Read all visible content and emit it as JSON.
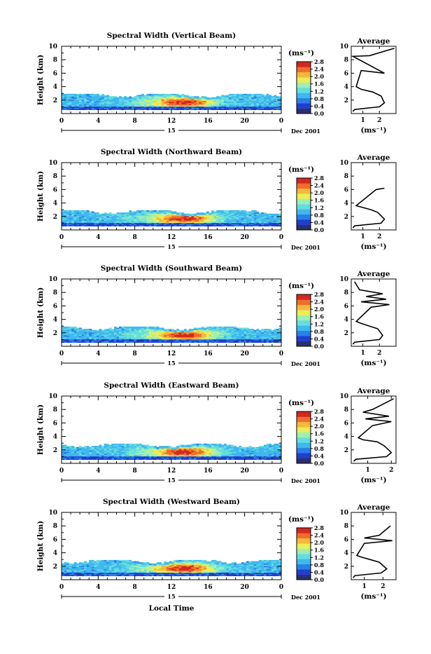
{
  "chart_data": [
    {
      "type": "heatmap",
      "title": "Spectral Width (Vertical Beam)",
      "ylabel": "Height (km)",
      "x_ticks": [
        "0",
        "4",
        "8",
        "12",
        "16",
        "20",
        "0"
      ],
      "y_ticks": [
        "2",
        "4",
        "6",
        "8",
        "10"
      ],
      "xlim": [
        0,
        24
      ],
      "ylim": [
        0,
        10
      ],
      "day_label": "15",
      "date_label": "Dec 2001",
      "colorbar_unit": "(ms⁻¹)",
      "colorbar_ticks": [
        "2.8",
        "2.4",
        "2.0",
        "1.6",
        "1.2",
        "0.8",
        "0.4",
        "0.0"
      ],
      "colorbar_range": [
        0,
        2.8
      ],
      "profile": {
        "title": "Average",
        "xlabel": "(ms⁻¹)",
        "x_ticks": [
          "1",
          "2"
        ],
        "xlim": [
          0.3,
          3.0
        ],
        "y_ticks": [
          "2",
          "4",
          "6",
          "8",
          "10"
        ],
        "ylim": [
          0,
          10
        ],
        "points": [
          [
            0.4,
            0.3
          ],
          [
            0.5,
            0.6
          ],
          [
            2.0,
            1.0
          ],
          [
            2.3,
            1.6
          ],
          [
            2.1,
            2.6
          ],
          [
            1.6,
            3.2
          ],
          [
            0.9,
            3.6
          ],
          [
            0.6,
            4.0
          ],
          [
            0.9,
            6.4
          ],
          [
            2.3,
            6.0
          ],
          [
            0.4,
            8.5
          ],
          [
            1.4,
            8.6
          ],
          [
            2.9,
            9.7
          ]
        ]
      }
    },
    {
      "type": "heatmap",
      "title": "Spectral Width (Northward Beam)",
      "ylabel": "Height (km)",
      "x_ticks": [
        "0",
        "4",
        "8",
        "12",
        "16",
        "20",
        "0"
      ],
      "y_ticks": [
        "2",
        "4",
        "6",
        "8",
        "10"
      ],
      "xlim": [
        0,
        24
      ],
      "ylim": [
        0,
        10
      ],
      "day_label": "15",
      "date_label": "Dec 2001",
      "colorbar_unit": "(ms⁻¹)",
      "colorbar_ticks": [
        "2.8",
        "2.4",
        "2.0",
        "1.6",
        "1.2",
        "0.8",
        "0.4",
        "0.0"
      ],
      "colorbar_range": [
        0,
        2.8
      ],
      "profile": {
        "title": "Average",
        "xlabel": "(ms⁻¹)",
        "x_ticks": [
          "1",
          "2"
        ],
        "xlim": [
          0.3,
          3.0
        ],
        "y_ticks": [
          "2",
          "4",
          "6",
          "8",
          "10"
        ],
        "ylim": [
          0,
          10
        ],
        "points": [
          [
            0.4,
            0.3
          ],
          [
            0.5,
            0.6
          ],
          [
            2.1,
            1.0
          ],
          [
            2.3,
            1.6
          ],
          [
            1.9,
            2.6
          ],
          [
            1.5,
            3.0
          ],
          [
            0.9,
            3.4
          ],
          [
            0.6,
            3.6
          ],
          [
            1.8,
            6.0
          ],
          [
            2.3,
            6.2
          ]
        ]
      }
    },
    {
      "type": "heatmap",
      "title": "Spectral Width (Southward Beam)",
      "ylabel": "Height (km)",
      "x_ticks": [
        "0",
        "4",
        "8",
        "12",
        "16",
        "20",
        "0"
      ],
      "y_ticks": [
        "2",
        "4",
        "6",
        "8",
        "10"
      ],
      "xlim": [
        0,
        24
      ],
      "ylim": [
        0,
        10
      ],
      "day_label": "15",
      "date_label": "Dec 2001",
      "colorbar_unit": "(ms⁻¹)",
      "colorbar_ticks": [
        "2.8",
        "2.4",
        "2.0",
        "1.6",
        "1.2",
        "0.8",
        "0.4",
        "0.0"
      ],
      "colorbar_range": [
        0,
        2.8
      ],
      "profile": {
        "title": "Average",
        "xlabel": "(ms⁻¹)",
        "x_ticks": [
          "1",
          "2"
        ],
        "xlim": [
          0.3,
          3.0
        ],
        "y_ticks": [
          "2",
          "4",
          "6",
          "8",
          "10"
        ],
        "ylim": [
          0,
          10
        ],
        "points": [
          [
            0.4,
            0.3
          ],
          [
            0.5,
            0.6
          ],
          [
            2.0,
            1.0
          ],
          [
            2.2,
            1.6
          ],
          [
            1.9,
            2.6
          ],
          [
            1.4,
            3.0
          ],
          [
            0.9,
            3.4
          ],
          [
            0.6,
            3.7
          ],
          [
            1.5,
            5.8
          ],
          [
            2.6,
            6.2
          ],
          [
            0.9,
            6.6
          ],
          [
            2.4,
            7.0
          ],
          [
            1.2,
            7.4
          ],
          [
            2.2,
            7.8
          ],
          [
            0.8,
            8.4
          ],
          [
            0.5,
            9.6
          ]
        ]
      }
    },
    {
      "type": "heatmap",
      "title": "Spectral Width (Eastward Beam)",
      "ylabel": "Height (km)",
      "x_ticks": [
        "0",
        "4",
        "8",
        "12",
        "16",
        "20",
        "0"
      ],
      "y_ticks": [
        "2",
        "4",
        "6",
        "8",
        "10"
      ],
      "xlim": [
        0,
        24
      ],
      "ylim": [
        0,
        10
      ],
      "day_label": "15",
      "date_label": "Dec 2001",
      "colorbar_unit": "(ms⁻¹)",
      "colorbar_ticks": [
        "2.8",
        "2.4",
        "2.0",
        "1.6",
        "1.2",
        "0.8",
        "0.4",
        "0.0"
      ],
      "colorbar_range": [
        0,
        2.8
      ],
      "profile": {
        "title": "Average",
        "xlabel": "(ms⁻¹)",
        "x_ticks": [
          "1",
          "2"
        ],
        "xlim": [
          0.3,
          2.2
        ],
        "y_ticks": [
          "2",
          "4",
          "6",
          "8",
          "10"
        ],
        "ylim": [
          0,
          10
        ],
        "points": [
          [
            0.4,
            0.3
          ],
          [
            0.5,
            0.6
          ],
          [
            1.8,
            1.0
          ],
          [
            2.0,
            1.6
          ],
          [
            1.7,
            2.6
          ],
          [
            1.4,
            3.2
          ],
          [
            0.8,
            3.5
          ],
          [
            0.6,
            3.8
          ],
          [
            1.2,
            5.6
          ],
          [
            2.0,
            6.2
          ],
          [
            0.9,
            6.6
          ],
          [
            1.9,
            7.0
          ],
          [
            0.8,
            7.6
          ],
          [
            1.2,
            8.0
          ],
          [
            2.1,
            9.6
          ]
        ]
      }
    },
    {
      "type": "heatmap",
      "title": "Spectral Width (Westward Beam)",
      "ylabel": "Height (km)",
      "x_ticks": [
        "0",
        "4",
        "8",
        "12",
        "16",
        "20",
        "0"
      ],
      "y_ticks": [
        "2",
        "4",
        "6",
        "8",
        "10"
      ],
      "xlim": [
        0,
        24
      ],
      "ylim": [
        0,
        10
      ],
      "day_label": "15",
      "date_label": "Dec 2001",
      "xlabel": "Local Time",
      "colorbar_unit": "(ms⁻¹)",
      "colorbar_ticks": [
        "2.8",
        "2.4",
        "2.0",
        "1.6",
        "1.2",
        "0.8",
        "0.4",
        "0.0"
      ],
      "colorbar_range": [
        0,
        2.8
      ],
      "profile": {
        "title": "Average",
        "xlabel": "(ms⁻¹)",
        "x_ticks": [
          "1",
          "2"
        ],
        "xlim": [
          0.3,
          2.7
        ],
        "y_ticks": [
          "2",
          "4",
          "6",
          "8",
          "10"
        ],
        "ylim": [
          0,
          10
        ],
        "points": [
          [
            0.4,
            0.3
          ],
          [
            0.5,
            0.6
          ],
          [
            1.9,
            1.0
          ],
          [
            2.2,
            1.6
          ],
          [
            1.8,
            2.6
          ],
          [
            1.3,
            3.0
          ],
          [
            0.8,
            3.4
          ],
          [
            0.6,
            3.6
          ],
          [
            1.0,
            5.4
          ],
          [
            2.5,
            5.8
          ],
          [
            1.0,
            6.2
          ],
          [
            1.8,
            6.6
          ],
          [
            2.4,
            8.0
          ]
        ]
      }
    }
  ],
  "colors": {
    "colormap": [
      "#2b2f6e",
      "#1f3fd0",
      "#2a7fe8",
      "#3fb8ee",
      "#64dde0",
      "#9ef0b0",
      "#e9ee58",
      "#f6b83a",
      "#ef6e2a",
      "#d32820"
    ]
  }
}
